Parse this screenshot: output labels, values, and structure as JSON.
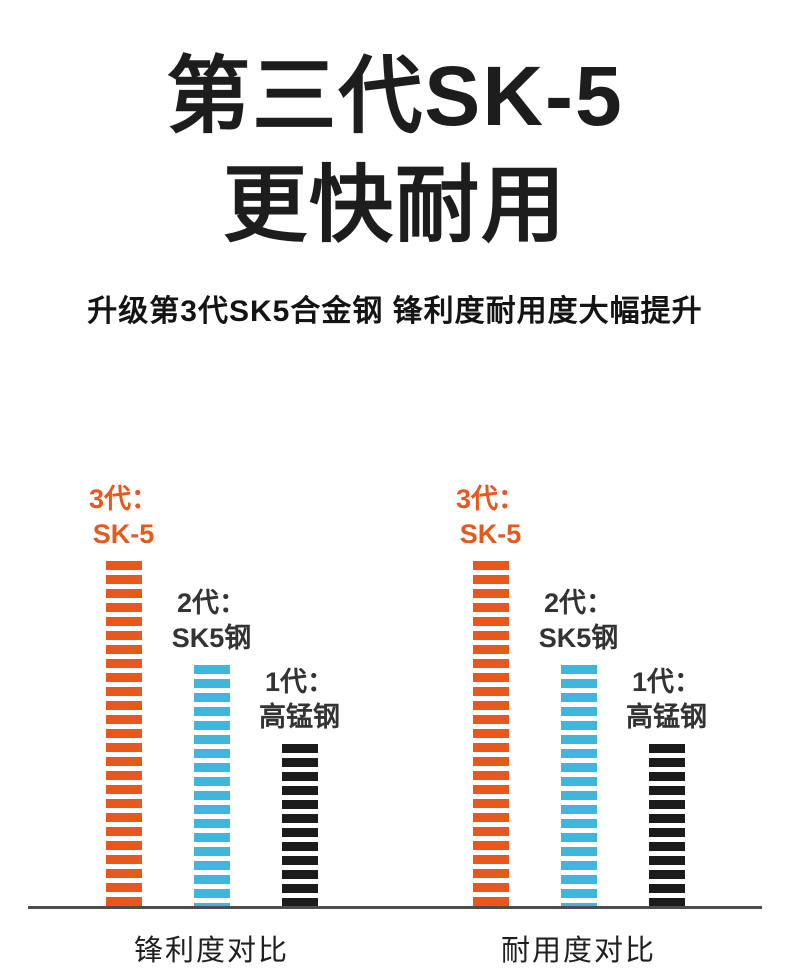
{
  "header": {
    "title_line1": "第三代SK-5",
    "title_line2": "更快耐用",
    "subtitle": "升级第3代SK5合金钢 锋利度耐用度大幅提升"
  },
  "colors": {
    "orange": "#e8581c",
    "cyan": "#3fb7dc",
    "black": "#1b1b1b",
    "baseline": "#4d4d4d",
    "title_text": "#1d1d1d"
  },
  "chart_data": [
    {
      "type": "bar",
      "title": "锋利度对比",
      "categories": [
        "3代：SK-5",
        "2代：SK5钢",
        "1代：高锰钢"
      ],
      "values": [
        100,
        70,
        47
      ],
      "ylim": [
        0,
        100
      ],
      "xlabel": "",
      "ylabel": "",
      "grid": false,
      "legend": "none",
      "bars": [
        {
          "label_line1": "3代：",
          "label_line2": "SK-5",
          "value": 100,
          "color": "#e8581c",
          "label_color": "#e8581c"
        },
        {
          "label_line1": "2代：",
          "label_line2": "SK5钢",
          "value": 70,
          "color": "#3fb7dc",
          "label_color": "#333333"
        },
        {
          "label_line1": "1代：",
          "label_line2": "高锰钢",
          "value": 47,
          "color": "#1b1b1b",
          "label_color": "#333333"
        }
      ]
    },
    {
      "type": "bar",
      "title": "耐用度对比",
      "categories": [
        "3代：SK-5",
        "2代：SK5钢",
        "1代：高锰钢"
      ],
      "values": [
        100,
        70,
        47
      ],
      "ylim": [
        0,
        100
      ],
      "xlabel": "",
      "ylabel": "",
      "grid": false,
      "legend": "none",
      "bars": [
        {
          "label_line1": "3代：",
          "label_line2": "SK-5",
          "value": 100,
          "color": "#e8581c",
          "label_color": "#e8581c"
        },
        {
          "label_line1": "2代：",
          "label_line2": "SK5钢",
          "value": 70,
          "color": "#3fb7dc",
          "label_color": "#333333"
        },
        {
          "label_line1": "1代：",
          "label_line2": "高锰钢",
          "value": 47,
          "color": "#1b1b1b",
          "label_color": "#333333"
        }
      ]
    }
  ]
}
